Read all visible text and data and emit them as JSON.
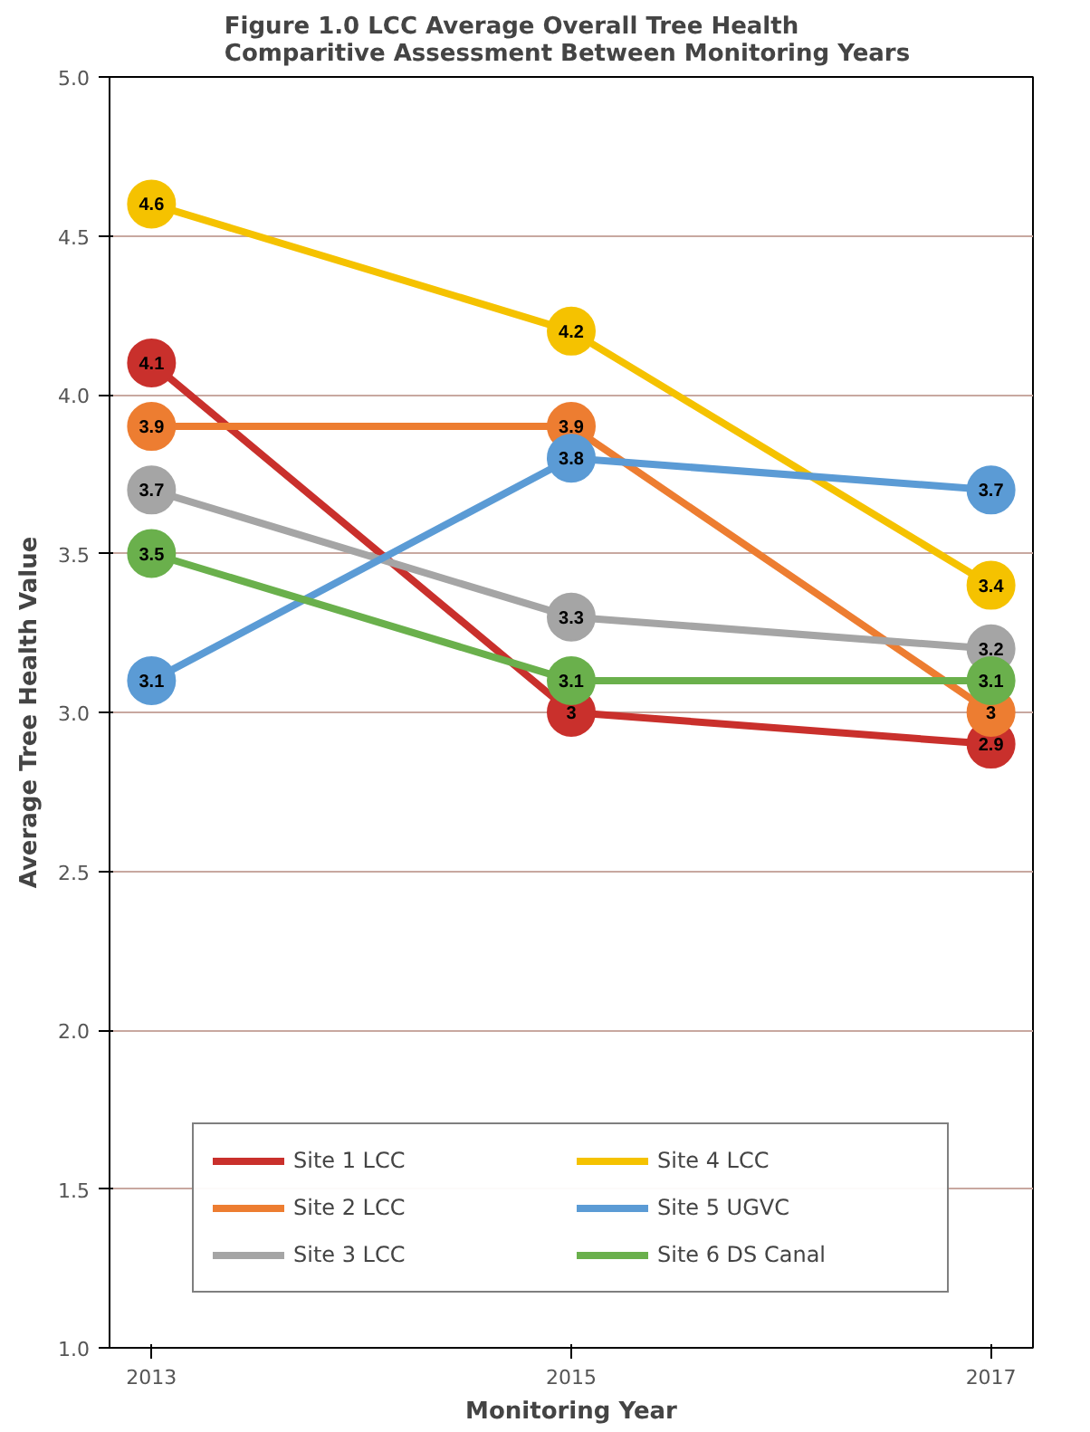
{
  "chart_data": {
    "type": "line",
    "title": "Figure 1.0 LCC Average Overall Tree Health\nComparitive Assessment  Between Monitoring Years",
    "xlabel": "Monitoring Year",
    "ylabel": "Average Tree Health Value",
    "x": [
      2013,
      2015,
      2017
    ],
    "xlim": [
      2012.8,
      2017.2
    ],
    "xticks": [
      2013,
      2015,
      2017
    ],
    "ylim": [
      1,
      5
    ],
    "yticks": [
      {
        "value": 1,
        "label": "1.0"
      },
      {
        "value": 1.5,
        "label": "1.5"
      },
      {
        "value": 2,
        "label": "2.0"
      },
      {
        "value": 2.5,
        "label": "2.5"
      },
      {
        "value": 3,
        "label": "3.0"
      },
      {
        "value": 3.5,
        "label": "3.5"
      },
      {
        "value": 4,
        "label": "4.0"
      },
      {
        "value": 4.5,
        "label": "4.5"
      },
      {
        "value": 5,
        "label": "5.0"
      }
    ],
    "series": [
      {
        "name": "Site 1 LCC",
        "color": "#c9302c",
        "values": [
          4.1,
          3,
          2.9
        ]
      },
      {
        "name": "Site 2 LCC",
        "color": "#ed7d31",
        "values": [
          3.9,
          3.9,
          3
        ]
      },
      {
        "name": "Site 3 LCC",
        "color": "#a5a5a5",
        "values": [
          3.7,
          3.3,
          3.2
        ]
      },
      {
        "name": "Site 4 LCC",
        "color": "#f5c200",
        "values": [
          4.6,
          4.2,
          3.4
        ]
      },
      {
        "name": "Site 5 UGVC",
        "color": "#5b9bd5",
        "values": [
          3.1,
          3.8,
          3.7
        ]
      },
      {
        "name": "Site 6 DS Canal",
        "color": "#6ab04c",
        "values": [
          3.5,
          3.1,
          3.1
        ]
      }
    ],
    "data_labels": true,
    "marker": "circle",
    "line_style": "solid",
    "grid": "y",
    "legend": "bottom"
  }
}
